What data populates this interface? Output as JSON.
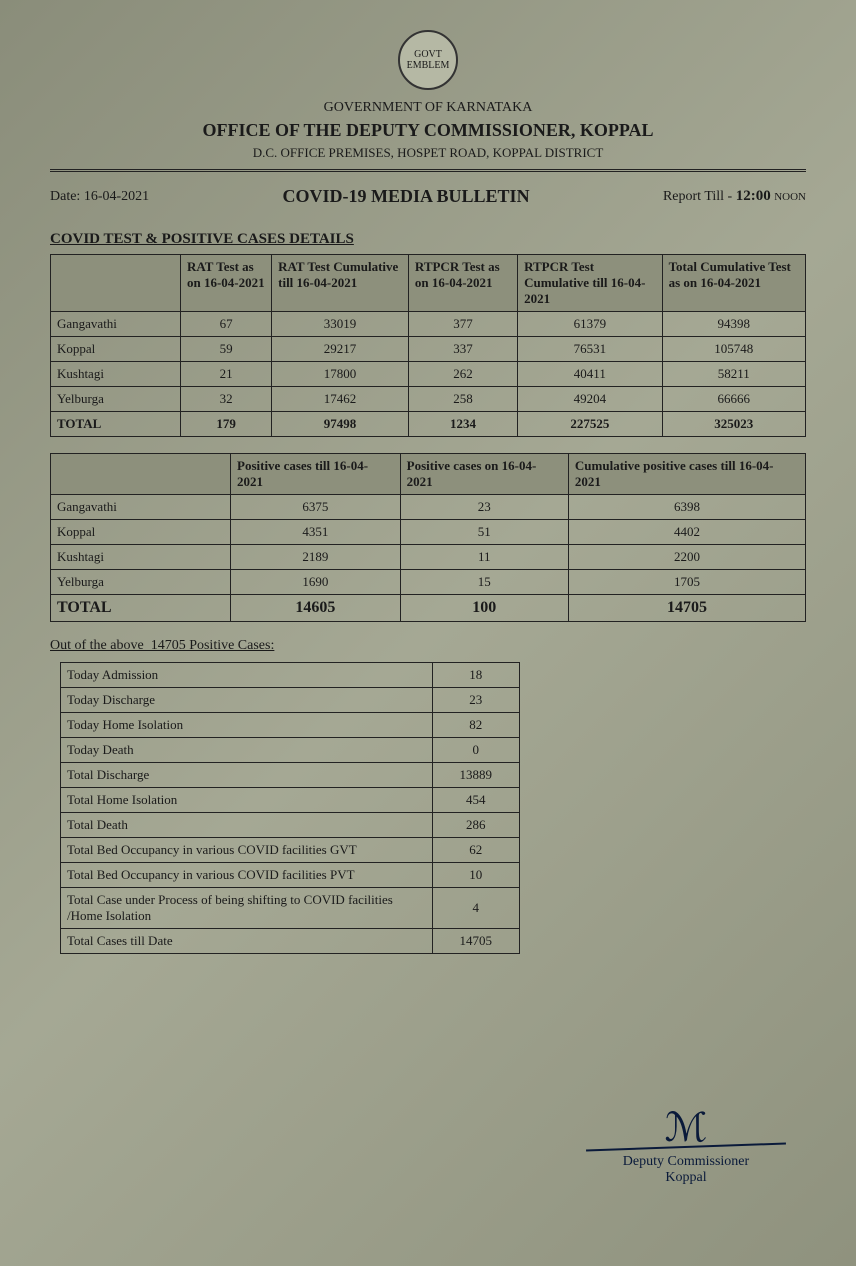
{
  "emblem_label": "GOVT EMBLEM",
  "header": {
    "govt": "GOVERNMENT OF KARNATAKA",
    "office": "OFFICE OF THE DEPUTY COMMISSIONER, KOPPAL",
    "premises": "D.C. OFFICE PREMISES, HOSPET ROAD, KOPPAL DISTRICT"
  },
  "subheader": {
    "date_label": "Date: 16-04-2021",
    "bulletin": "COVID-19 MEDIA BULLETIN",
    "report_till_prefix": "Report Till - ",
    "report_till_time": "12:00",
    "report_till_suffix": "NOON"
  },
  "section1_title": "COVID TEST & POSITIVE CASES DETAILS",
  "table1": {
    "columns": [
      "",
      "RAT Test as on 16-04-2021",
      "RAT Test Cumulative till 16-04-2021",
      "RTPCR Test as on 16-04-2021",
      "RTPCR Test Cumulative till 16-04-2021",
      "Total Cumulative Test as on 16-04-2021"
    ],
    "rows": [
      [
        "Gangavathi",
        "67",
        "33019",
        "377",
        "61379",
        "94398"
      ],
      [
        "Koppal",
        "59",
        "29217",
        "337",
        "76531",
        "105748"
      ],
      [
        "Kushtagi",
        "21",
        "17800",
        "262",
        "40411",
        "58211"
      ],
      [
        "Yelburga",
        "32",
        "17462",
        "258",
        "49204",
        "66666"
      ],
      [
        "TOTAL",
        "179",
        "97498",
        "1234",
        "227525",
        "325023"
      ]
    ]
  },
  "table2": {
    "columns": [
      "",
      "Positive cases till 16-04-2021",
      "Positive cases on 16-04-2021",
      "Cumulative positive cases till 16-04-2021"
    ],
    "rows": [
      [
        "Gangavathi",
        "6375",
        "23",
        "6398"
      ],
      [
        "Koppal",
        "4351",
        "51",
        "4402"
      ],
      [
        "Kushtagi",
        "2189",
        "11",
        "2200"
      ],
      [
        "Yelburga",
        "1690",
        "15",
        "1705"
      ],
      [
        "TOTAL",
        "14605",
        "100",
        "14705"
      ]
    ]
  },
  "out_of_line": "Out of the above  14705 Positive Cases:",
  "table3": {
    "rows": [
      [
        "Today Admission",
        "18"
      ],
      [
        "Today Discharge",
        "23"
      ],
      [
        "Today Home Isolation",
        "82"
      ],
      [
        "Today Death",
        "0"
      ],
      [
        "Total Discharge",
        "13889"
      ],
      [
        "Total Home Isolation",
        "454"
      ],
      [
        "Total Death",
        "286"
      ],
      [
        "Total Bed Occupancy in various COVID facilities GVT",
        "62"
      ],
      [
        "Total Bed Occupancy in various COVID facilities PVT",
        "10"
      ],
      [
        "Total Case under Process of being shifting to COVID facilities /Home Isolation",
        "4"
      ],
      [
        "Total Cases till Date",
        "14705"
      ]
    ]
  },
  "signature": {
    "title": "Deputy Commissioner",
    "place": "Koppal"
  }
}
